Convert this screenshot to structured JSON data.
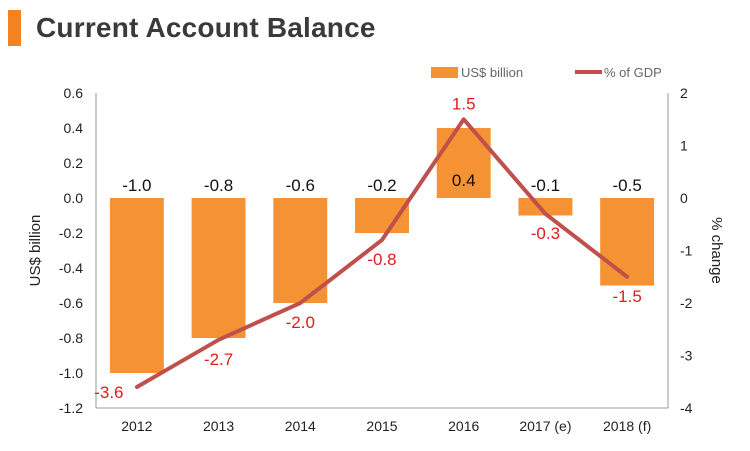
{
  "title": "Current Account Balance",
  "colors": {
    "accent": "#f58220",
    "bar": "#f59233",
    "line": "#c0504d",
    "line_label": "#e31b1b",
    "axis": "#999999"
  },
  "chart_data": {
    "type": "bar",
    "categories": [
      "2012",
      "2013",
      "2014",
      "2015",
      "2016",
      "2017 (e)",
      "2018 (f)"
    ],
    "series": [
      {
        "name": "US$ billion",
        "type": "bar",
        "axis": "left",
        "values": [
          -1.0,
          -0.8,
          -0.6,
          -0.2,
          0.4,
          -0.1,
          -0.5
        ],
        "labels": [
          "-1.0",
          "-0.8",
          "-0.6",
          "-0.2",
          "0.4",
          "-0.1",
          "-0.5"
        ]
      },
      {
        "name": "% of GDP",
        "type": "line",
        "axis": "right",
        "values": [
          -3.6,
          -2.7,
          -2.0,
          -0.8,
          1.5,
          -0.3,
          -1.5
        ],
        "labels": [
          "-3.6",
          "-2.7",
          "-2.0",
          "-0.8",
          "1.5",
          "-0.3",
          "-1.5"
        ]
      }
    ],
    "ylabel": "US$ billion",
    "ylim": [
      -1.2,
      0.6
    ],
    "yticks": [
      "0.6",
      "0.4",
      "0.2",
      "0.0",
      "-0.2",
      "-0.4",
      "-0.6",
      "-0.8",
      "-1.0",
      "-1.2"
    ],
    "y2label": "% change",
    "y2lim": [
      -4,
      2
    ],
    "y2ticks": [
      "2",
      "1",
      "0",
      "-1",
      "-2",
      "-3",
      "-4"
    ],
    "legend_position": "top-right",
    "grid": false
  }
}
